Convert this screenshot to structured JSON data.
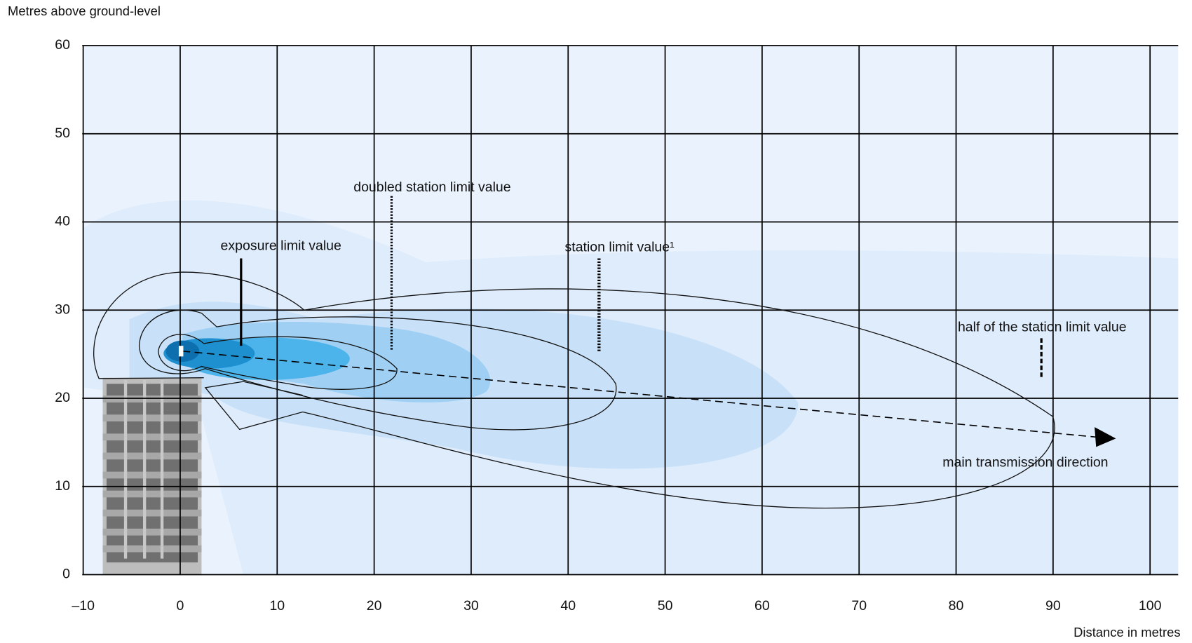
{
  "chart_data": {
    "type": "diagram",
    "y_axis_label": "Metres above ground-level",
    "x_axis_label": "Distance in metres",
    "xlim": [
      -10.1,
      102.9
    ],
    "ylim": [
      0,
      60
    ],
    "xticks": [
      {
        "value": -10,
        "label": "–10"
      },
      0,
      10,
      20,
      30,
      40,
      50,
      60,
      70,
      80,
      90,
      100
    ],
    "yticks": [
      0,
      10,
      20,
      30,
      40,
      50,
      60
    ],
    "grid": true,
    "annotations": [
      "exposure limit value",
      "doubled station limit value",
      "station limit value¹",
      "half of the station limit value",
      "main transmission direction"
    ]
  }
}
